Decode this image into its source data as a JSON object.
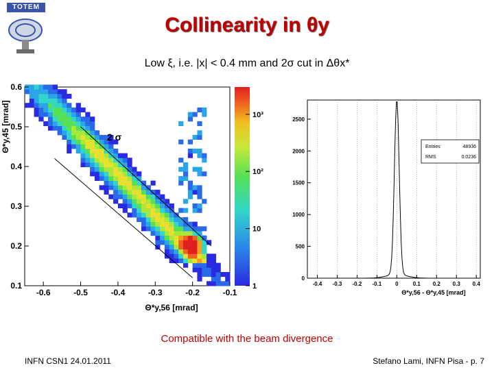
{
  "slide": {
    "title": "Collinearity in θy",
    "subtitle": "Low ξ, i.e. |x| < 0.4 mm and 2σ cut in Δθx*",
    "caption": "Compatible with the beam divergence",
    "footer_left": "INFN CSN1 24.01.2011",
    "footer_right": "Stefano Lami, INFN Pisa - p. 7",
    "logo_text": "TOTEM"
  },
  "colors": {
    "title": "#c00000",
    "caption": "#c00000"
  },
  "chart_data": [
    {
      "type": "heatmap",
      "xlabel": "Θ*y,56 [mrad]",
      "ylabel": "Θ*y,45 [mrad]",
      "xlim": [
        -0.65,
        -0.1
      ],
      "ylim": [
        0.1,
        0.6
      ],
      "xticks": [
        "-0.6",
        "-0.5",
        "-0.4",
        "-0.3",
        "-0.2",
        "-0.1"
      ],
      "yticks": [
        "0.1",
        "0.2",
        "0.3",
        "0.4",
        "0.5",
        "0.6"
      ],
      "colorbar": {
        "scale": "log",
        "range": [
          1,
          3000
        ],
        "ticks": [
          "1",
          "10",
          "10²",
          "10³"
        ]
      },
      "band_annotation": "2 σ",
      "band_lines": [
        {
          "x": [
            -0.5,
            -0.15
          ],
          "y": [
            0.5,
            0.2
          ]
        },
        {
          "x": [
            -0.57,
            -0.2
          ],
          "y": [
            0.42,
            0.12
          ]
        }
      ]
    },
    {
      "type": "histogram",
      "xlabel": "Θ*y,56 - Θ*y,45 [mrad]",
      "xlim": [
        -0.45,
        0.42
      ],
      "ylim": [
        0,
        2800
      ],
      "xticks": [
        "-0.4",
        "-0.3",
        "-0.2",
        "-0.1",
        "0",
        "0.1",
        "0.2",
        "0.3",
        "0.4"
      ],
      "yticks": [
        "0",
        "500",
        "1000",
        "1500",
        "2000",
        "2500"
      ],
      "stats": [
        {
          "label": "Entries",
          "value": "48936"
        },
        {
          "label": "RMS",
          "value": "0.0236"
        }
      ],
      "peak": {
        "x": 0.0,
        "height": 2750,
        "sigma": 0.012
      }
    }
  ]
}
